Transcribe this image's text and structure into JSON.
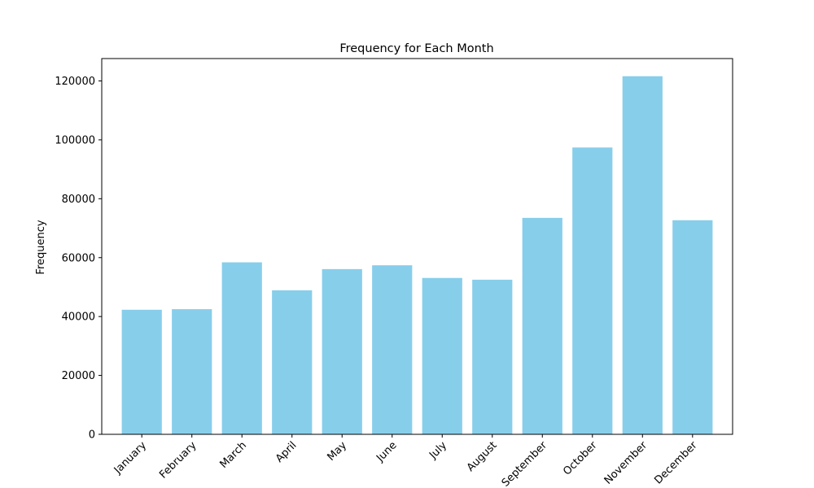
{
  "chart_data": {
    "type": "bar",
    "title": "Frequency for Each Month",
    "xlabel": "",
    "ylabel": "Frequency",
    "categories": [
      "January",
      "February",
      "March",
      "April",
      "May",
      "June",
      "July",
      "August",
      "September",
      "October",
      "November",
      "December"
    ],
    "values": [
      42300,
      42500,
      58400,
      48900,
      56100,
      57400,
      53100,
      52500,
      73500,
      97400,
      121600,
      72700
    ],
    "ylim": [
      0,
      127600
    ],
    "yticks": [
      0,
      20000,
      40000,
      60000,
      80000,
      100000,
      120000
    ],
    "bar_color": "#87CEEB",
    "grid": false,
    "legend": "none"
  }
}
